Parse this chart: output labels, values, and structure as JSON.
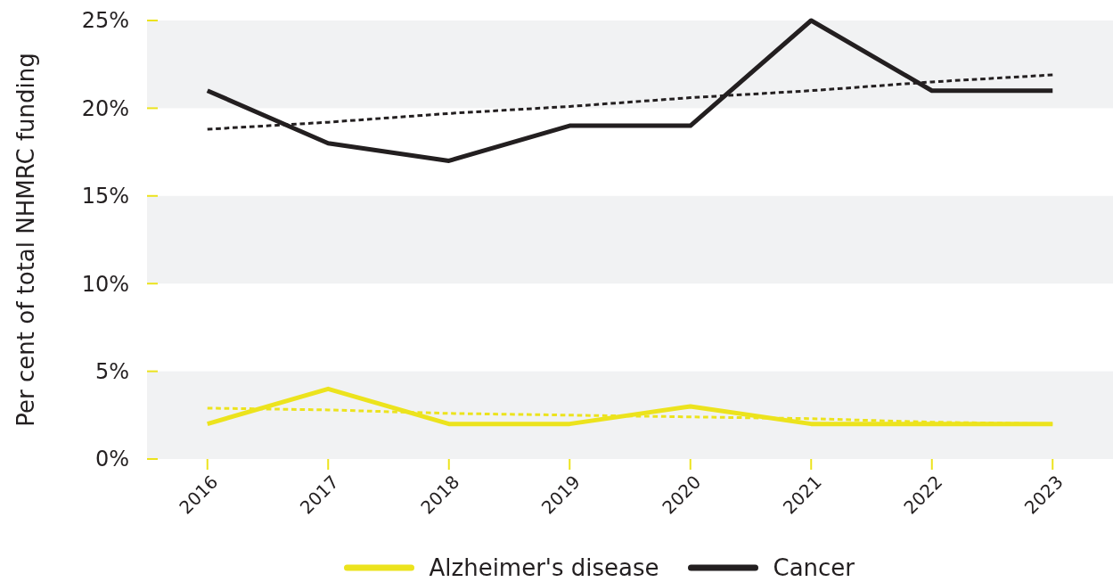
{
  "chart_data": {
    "type": "line",
    "ylabel": "Per cent of total NHMRC funding",
    "categories": [
      "2016",
      "2017",
      "2018",
      "2019",
      "2020",
      "2021",
      "2022",
      "2023"
    ],
    "series": [
      {
        "name": "Alzheimer's disease",
        "color": "#ece31d",
        "values": [
          2,
          4,
          2,
          2,
          3,
          2,
          2,
          2
        ]
      },
      {
        "name": "Cancer",
        "color": "#231f20",
        "values": [
          21,
          18,
          17,
          19,
          19,
          25,
          21,
          21
        ]
      },
      {
        "type": "line",
        "color": "#ece31d",
        "values": [
          2.9,
          2.8,
          2.6,
          2.5,
          2.4,
          2.3,
          2.1,
          2.0
        ],
        "line_style": "dotted"
      },
      {
        "type": "line",
        "color": "#231f20",
        "values": [
          18.8,
          19.2,
          19.7,
          20.1,
          20.6,
          21.0,
          21.5,
          21.9
        ],
        "line_style": "dotted"
      }
    ],
    "ylim": [
      0,
      25
    ],
    "yticks": [
      {
        "value": 0,
        "label": "0%"
      },
      {
        "value": 5,
        "label": "5%"
      },
      {
        "value": 10,
        "label": "10%"
      },
      {
        "value": 15,
        "label": "15%"
      },
      {
        "value": 20,
        "label": "20%"
      },
      {
        "value": 25,
        "label": "25%"
      }
    ],
    "bands": [
      {
        "axis": "y",
        "from": 0,
        "to": 5,
        "color": "#f1f2f3"
      },
      {
        "axis": "y",
        "from": 10,
        "to": 15,
        "color": "#f1f2f3"
      },
      {
        "axis": "y",
        "from": 20,
        "to": 25,
        "color": "#f1f2f3"
      }
    ],
    "grid": false,
    "legend": "bottom",
    "line_style": "solid",
    "marker": "none"
  }
}
